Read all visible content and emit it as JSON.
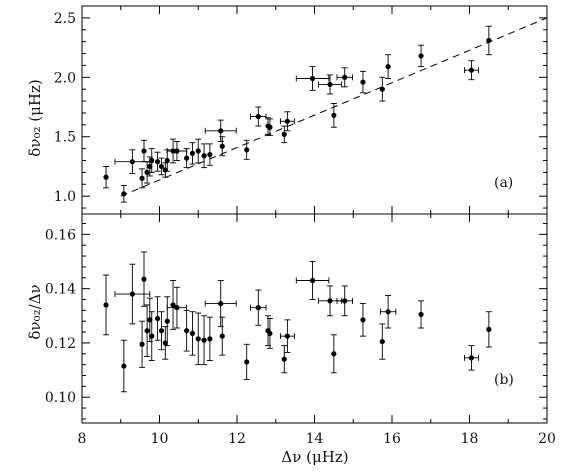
{
  "chart_data": [
    {
      "type": "scatter",
      "panel_label": "(a)",
      "xlabel": "",
      "ylabel": "δν₀₂ (μHz)",
      "xlim": [
        8,
        20
      ],
      "ylim": [
        0.85,
        2.6
      ],
      "x_ticks": [
        8,
        10,
        12,
        14,
        16,
        18,
        20
      ],
      "y_ticks": [
        1.0,
        1.5,
        2.0,
        2.5
      ],
      "y_tick_labels": [
        "1.0",
        "1.5",
        "2.0",
        "2.5"
      ],
      "error_bars": true,
      "fit_line": {
        "style": "dashed",
        "points": [
          [
            9.0,
            1.0
          ],
          [
            20.0,
            2.5
          ]
        ]
      },
      "points": [
        {
          "x": 8.62,
          "y": 1.16,
          "yerr": 0.09
        },
        {
          "x": 9.08,
          "y": 1.02,
          "yerr": 0.07
        },
        {
          "x": 9.3,
          "y": 1.29,
          "xerr": 0.45,
          "yerr": 0.1
        },
        {
          "x": 9.55,
          "y": 1.15,
          "yerr": 0.08
        },
        {
          "x": 9.6,
          "y": 1.38,
          "yerr": 0.09
        },
        {
          "x": 9.68,
          "y": 1.2,
          "yerr": 0.09
        },
        {
          "x": 9.75,
          "y": 1.25,
          "yerr": 0.08
        },
        {
          "x": 9.8,
          "y": 1.3,
          "yerr": 0.1
        },
        {
          "x": 9.95,
          "y": 1.29,
          "yerr": 0.08
        },
        {
          "x": 10.05,
          "y": 1.25,
          "yerr": 0.07
        },
        {
          "x": 10.15,
          "y": 1.22,
          "yerr": 0.06
        },
        {
          "x": 10.2,
          "y": 1.3,
          "yerr": 0.09
        },
        {
          "x": 10.35,
          "y": 1.38,
          "yerr": 0.1
        },
        {
          "x": 10.45,
          "y": 1.38,
          "xerr": 0.25,
          "yerr": 0.08
        },
        {
          "x": 10.7,
          "y": 1.32,
          "yerr": 0.08
        },
        {
          "x": 10.85,
          "y": 1.36,
          "yerr": 0.09
        },
        {
          "x": 11.0,
          "y": 1.38,
          "yerr": 0.1
        },
        {
          "x": 11.15,
          "y": 1.34,
          "yerr": 0.1
        },
        {
          "x": 11.3,
          "y": 1.35,
          "yerr": 0.09
        },
        {
          "x": 11.58,
          "y": 1.55,
          "xerr": 0.4,
          "yerr": 0.09
        },
        {
          "x": 11.62,
          "y": 1.42,
          "yerr": 0.08
        },
        {
          "x": 12.25,
          "y": 1.39,
          "yerr": 0.08
        },
        {
          "x": 12.55,
          "y": 1.67,
          "xerr": 0.2,
          "yerr": 0.08
        },
        {
          "x": 12.8,
          "y": 1.59,
          "yerr": 0.07
        },
        {
          "x": 12.85,
          "y": 1.58,
          "yerr": 0.07
        },
        {
          "x": 13.22,
          "y": 1.52,
          "yerr": 0.07
        },
        {
          "x": 13.3,
          "y": 1.63,
          "xerr": 0.18,
          "yerr": 0.08
        },
        {
          "x": 13.95,
          "y": 1.99,
          "xerr": 0.42,
          "yerr": 0.1
        },
        {
          "x": 14.4,
          "y": 1.94,
          "xerr": 0.3,
          "yerr": 0.08
        },
        {
          "x": 14.5,
          "y": 1.68,
          "yerr": 0.1
        },
        {
          "x": 14.78,
          "y": 2.0,
          "xerr": 0.2,
          "yerr": 0.08
        },
        {
          "x": 15.25,
          "y": 1.96,
          "yerr": 0.09
        },
        {
          "x": 15.75,
          "y": 1.9,
          "yerr": 0.1
        },
        {
          "x": 15.9,
          "y": 2.09,
          "yerr": 0.1
        },
        {
          "x": 16.75,
          "y": 2.18,
          "yerr": 0.09
        },
        {
          "x": 18.05,
          "y": 2.06,
          "xerr": 0.18,
          "yerr": 0.08
        },
        {
          "x": 18.5,
          "y": 2.31,
          "yerr": 0.12
        }
      ]
    },
    {
      "type": "scatter",
      "panel_label": "(b)",
      "xlabel": "Δν (μHz)",
      "ylabel": "δν₀₂/Δν",
      "xlim": [
        8,
        20
      ],
      "ylim": [
        0.0905,
        0.1675
      ],
      "x_ticks": [
        8,
        10,
        12,
        14,
        16,
        18,
        20
      ],
      "x_tick_labels": [
        "8",
        "10",
        "12",
        "14",
        "16",
        "18",
        "20"
      ],
      "y_ticks": [
        0.1,
        0.12,
        0.14,
        0.16
      ],
      "y_tick_labels": [
        "0.10",
        "0.12",
        "0.14",
        "0.16"
      ],
      "error_bars": true,
      "points": [
        {
          "x": 8.62,
          "y": 0.134,
          "yerr": 0.011
        },
        {
          "x": 9.08,
          "y": 0.1115,
          "yerr": 0.0095
        },
        {
          "x": 9.3,
          "y": 0.138,
          "xerr": 0.45,
          "yerr": 0.011
        },
        {
          "x": 9.55,
          "y": 0.1195,
          "yerr": 0.0085
        },
        {
          "x": 9.6,
          "y": 0.1435,
          "yerr": 0.01
        },
        {
          "x": 9.68,
          "y": 0.1245,
          "yerr": 0.0095
        },
        {
          "x": 9.75,
          "y": 0.1285,
          "yerr": 0.008
        },
        {
          "x": 9.8,
          "y": 0.1225,
          "yerr": 0.009
        },
        {
          "x": 9.95,
          "y": 0.129,
          "yerr": 0.008
        },
        {
          "x": 10.05,
          "y": 0.1245,
          "yerr": 0.007
        },
        {
          "x": 10.15,
          "y": 0.12,
          "yerr": 0.006
        },
        {
          "x": 10.2,
          "y": 0.128,
          "yerr": 0.009
        },
        {
          "x": 10.35,
          "y": 0.134,
          "yerr": 0.009
        },
        {
          "x": 10.45,
          "y": 0.133,
          "xerr": 0.25,
          "yerr": 0.0075
        },
        {
          "x": 10.7,
          "y": 0.1245,
          "yerr": 0.0075
        },
        {
          "x": 10.85,
          "y": 0.1235,
          "yerr": 0.008
        },
        {
          "x": 11.0,
          "y": 0.1215,
          "yerr": 0.0095
        },
        {
          "x": 11.15,
          "y": 0.121,
          "yerr": 0.009
        },
        {
          "x": 11.3,
          "y": 0.1215,
          "yerr": 0.008
        },
        {
          "x": 11.58,
          "y": 0.1345,
          "xerr": 0.4,
          "yerr": 0.0085
        },
        {
          "x": 11.62,
          "y": 0.1225,
          "yerr": 0.007
        },
        {
          "x": 12.25,
          "y": 0.113,
          "yerr": 0.0065
        },
        {
          "x": 12.55,
          "y": 0.133,
          "xerr": 0.2,
          "yerr": 0.0065
        },
        {
          "x": 12.8,
          "y": 0.1245,
          "yerr": 0.0055
        },
        {
          "x": 12.85,
          "y": 0.1235,
          "yerr": 0.0055
        },
        {
          "x": 13.22,
          "y": 0.114,
          "yerr": 0.005
        },
        {
          "x": 13.3,
          "y": 0.1225,
          "xerr": 0.18,
          "yerr": 0.006
        },
        {
          "x": 13.95,
          "y": 0.143,
          "xerr": 0.42,
          "yerr": 0.007
        },
        {
          "x": 14.4,
          "y": 0.1355,
          "xerr": 0.3,
          "yerr": 0.0055
        },
        {
          "x": 14.5,
          "y": 0.116,
          "yerr": 0.007
        },
        {
          "x": 14.78,
          "y": 0.1355,
          "xerr": 0.2,
          "yerr": 0.0055
        },
        {
          "x": 15.25,
          "y": 0.1285,
          "yerr": 0.006
        },
        {
          "x": 15.75,
          "y": 0.1205,
          "yerr": 0.0065
        },
        {
          "x": 15.9,
          "y": 0.1315,
          "xerr": 0.2,
          "yerr": 0.006
        },
        {
          "x": 16.75,
          "y": 0.1305,
          "yerr": 0.005
        },
        {
          "x": 18.05,
          "y": 0.1145,
          "xerr": 0.18,
          "yerr": 0.0045
        },
        {
          "x": 18.5,
          "y": 0.125,
          "yerr": 0.0065
        }
      ]
    }
  ]
}
